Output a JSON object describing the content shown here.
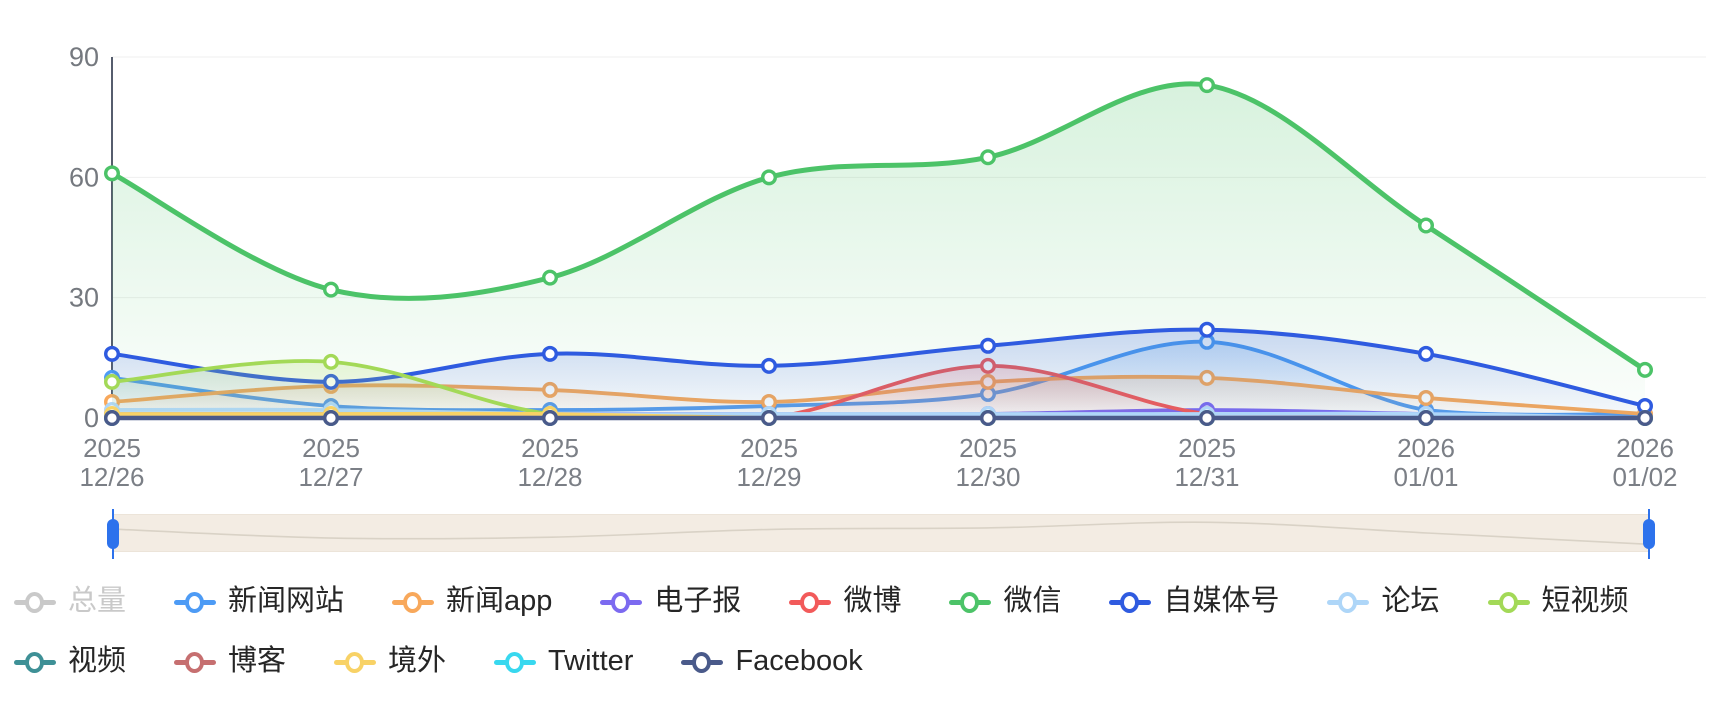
{
  "chart_data": {
    "type": "line",
    "title": "",
    "smooth": true,
    "grid": true,
    "legend_position": "bottom",
    "ylim": [
      0,
      90
    ],
    "yticks": [
      0,
      30,
      60,
      90
    ],
    "categories": [
      [
        "2025",
        "12/26"
      ],
      [
        "2025",
        "12/27"
      ],
      [
        "2025",
        "12/28"
      ],
      [
        "2025",
        "12/29"
      ],
      [
        "2025",
        "12/30"
      ],
      [
        "2025",
        "12/31"
      ],
      [
        "2026",
        "01/01"
      ],
      [
        "2026",
        "01/02"
      ]
    ],
    "series": [
      {
        "name": "总量",
        "color": "#c9c9c9",
        "disabled": true,
        "values": null,
        "line_width": 3.8
      },
      {
        "name": "新闻网站",
        "color": "#4d9bf5",
        "disabled": false,
        "values": [
          10,
          3,
          2,
          3,
          6,
          19,
          2,
          1
        ],
        "line_width": 3.8
      },
      {
        "name": "新闻app",
        "color": "#f8a85b",
        "disabled": false,
        "values": [
          4,
          8,
          7,
          4,
          9,
          10,
          5,
          1
        ],
        "line_width": 3.8
      },
      {
        "name": "电子报",
        "color": "#7c6af0",
        "disabled": false,
        "values": [
          1,
          1,
          1,
          1,
          1,
          2,
          1,
          0
        ],
        "line_width": 3.8
      },
      {
        "name": "微博",
        "color": "#f25a5a",
        "disabled": false,
        "values": [
          0,
          0,
          0,
          0,
          13,
          1,
          0,
          0
        ],
        "line_width": 3.8
      },
      {
        "name": "微信",
        "color": "#4cc368",
        "disabled": false,
        "values": [
          61,
          32,
          35,
          60,
          65,
          83,
          48,
          12
        ],
        "line_width": 5
      },
      {
        "name": "自媒体号",
        "color": "#2f5be0",
        "disabled": false,
        "values": [
          16,
          9,
          16,
          13,
          18,
          22,
          16,
          3
        ],
        "line_width": 4
      },
      {
        "name": "论坛",
        "color": "#aed6f8",
        "disabled": false,
        "values": [
          2,
          2,
          1,
          1,
          1,
          1,
          1,
          0
        ],
        "line_width": 3.8
      },
      {
        "name": "短视频",
        "color": "#a3d957",
        "disabled": false,
        "values": [
          9,
          14,
          1,
          0,
          0,
          0,
          0,
          0
        ],
        "line_width": 3.8
      },
      {
        "name": "视频",
        "color": "#3e9096",
        "disabled": false,
        "values": [
          0,
          0,
          0,
          0,
          0,
          0,
          0,
          0
        ],
        "line_width": 3.8
      },
      {
        "name": "博客",
        "color": "#c66f70",
        "disabled": false,
        "values": [
          0,
          0,
          0,
          0,
          0,
          0,
          0,
          0
        ],
        "line_width": 3.8
      },
      {
        "name": "境外",
        "color": "#f8d266",
        "disabled": false,
        "values": [
          1,
          1,
          1,
          0,
          0,
          0,
          0,
          0
        ],
        "line_width": 3.8
      },
      {
        "name": "Twitter",
        "color": "#38d8ef",
        "disabled": false,
        "values": [
          0,
          0,
          0,
          0,
          0,
          0,
          0,
          0
        ],
        "line_width": 3.8
      },
      {
        "name": "Facebook",
        "color": "#4a5a8a",
        "disabled": false,
        "values": [
          0,
          0,
          0,
          0,
          0,
          0,
          0,
          0
        ],
        "line_width": 4.5
      }
    ],
    "preview_series": "微信"
  },
  "axis": {
    "axis_line_color": "#565d6d",
    "grid_line_color": "#efefef",
    "label_color": "#76797f"
  },
  "slider": {
    "track_color": "#f3ece3",
    "border_color": "#ece4d9",
    "handle_color": "#2d72ec",
    "preview_color": "#d9d2c6"
  },
  "legend": {
    "disabled_color": "#c9c9c9",
    "label_color": "#262626"
  }
}
